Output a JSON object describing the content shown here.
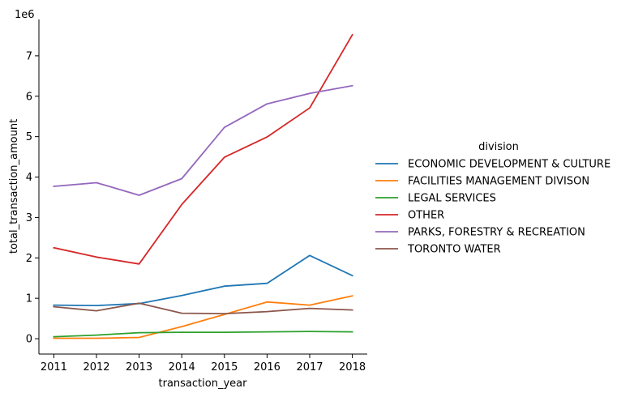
{
  "chart_data": {
    "type": "line",
    "xlabel": "transaction_year",
    "ylabel": "total_transaction_amount",
    "y_offset_label": "1e6",
    "x": [
      2011,
      2012,
      2013,
      2014,
      2015,
      2016,
      2017,
      2018
    ],
    "x_ticks": [
      "2011",
      "2012",
      "2013",
      "2014",
      "2015",
      "2016",
      "2017",
      "2018"
    ],
    "xlim": [
      2010.65,
      2018.35
    ],
    "y_ticks": [
      0,
      1,
      2,
      3,
      4,
      5,
      6,
      7
    ],
    "ylim": [
      -0.38,
      7.9
    ],
    "y_unit_multiplier": 1000000,
    "grid": false,
    "legend_title": "division",
    "legend_placement": "right",
    "series": [
      {
        "name": "ECONOMIC DEVELOPMENT & CULTURE",
        "color": "#1f77b4",
        "values": [
          0.83,
          0.82,
          0.87,
          1.07,
          1.3,
          1.37,
          2.06,
          1.56
        ]
      },
      {
        "name": "FACILITIES MANAGEMENT DIVISON",
        "color": "#ff7f0e",
        "values": [
          0.01,
          0.01,
          0.03,
          0.3,
          0.6,
          0.91,
          0.83,
          1.06
        ]
      },
      {
        "name": "LEGAL SERVICES",
        "color": "#2ca02c",
        "values": [
          0.05,
          0.09,
          0.15,
          0.16,
          0.16,
          0.17,
          0.18,
          0.17
        ]
      },
      {
        "name": "OTHER",
        "color": "#d62728",
        "values": [
          2.25,
          2.02,
          1.85,
          3.32,
          4.49,
          4.99,
          5.71,
          7.52
        ]
      },
      {
        "name": "PARKS, FORESTRY & RECREATION",
        "color": "#9467bd",
        "values": [
          3.77,
          3.86,
          3.55,
          3.96,
          5.23,
          5.81,
          6.07,
          6.26
        ]
      },
      {
        "name": "TORONTO WATER",
        "color": "#8c564b",
        "values": [
          0.79,
          0.69,
          0.88,
          0.63,
          0.62,
          0.67,
          0.75,
          0.71
        ]
      }
    ]
  }
}
